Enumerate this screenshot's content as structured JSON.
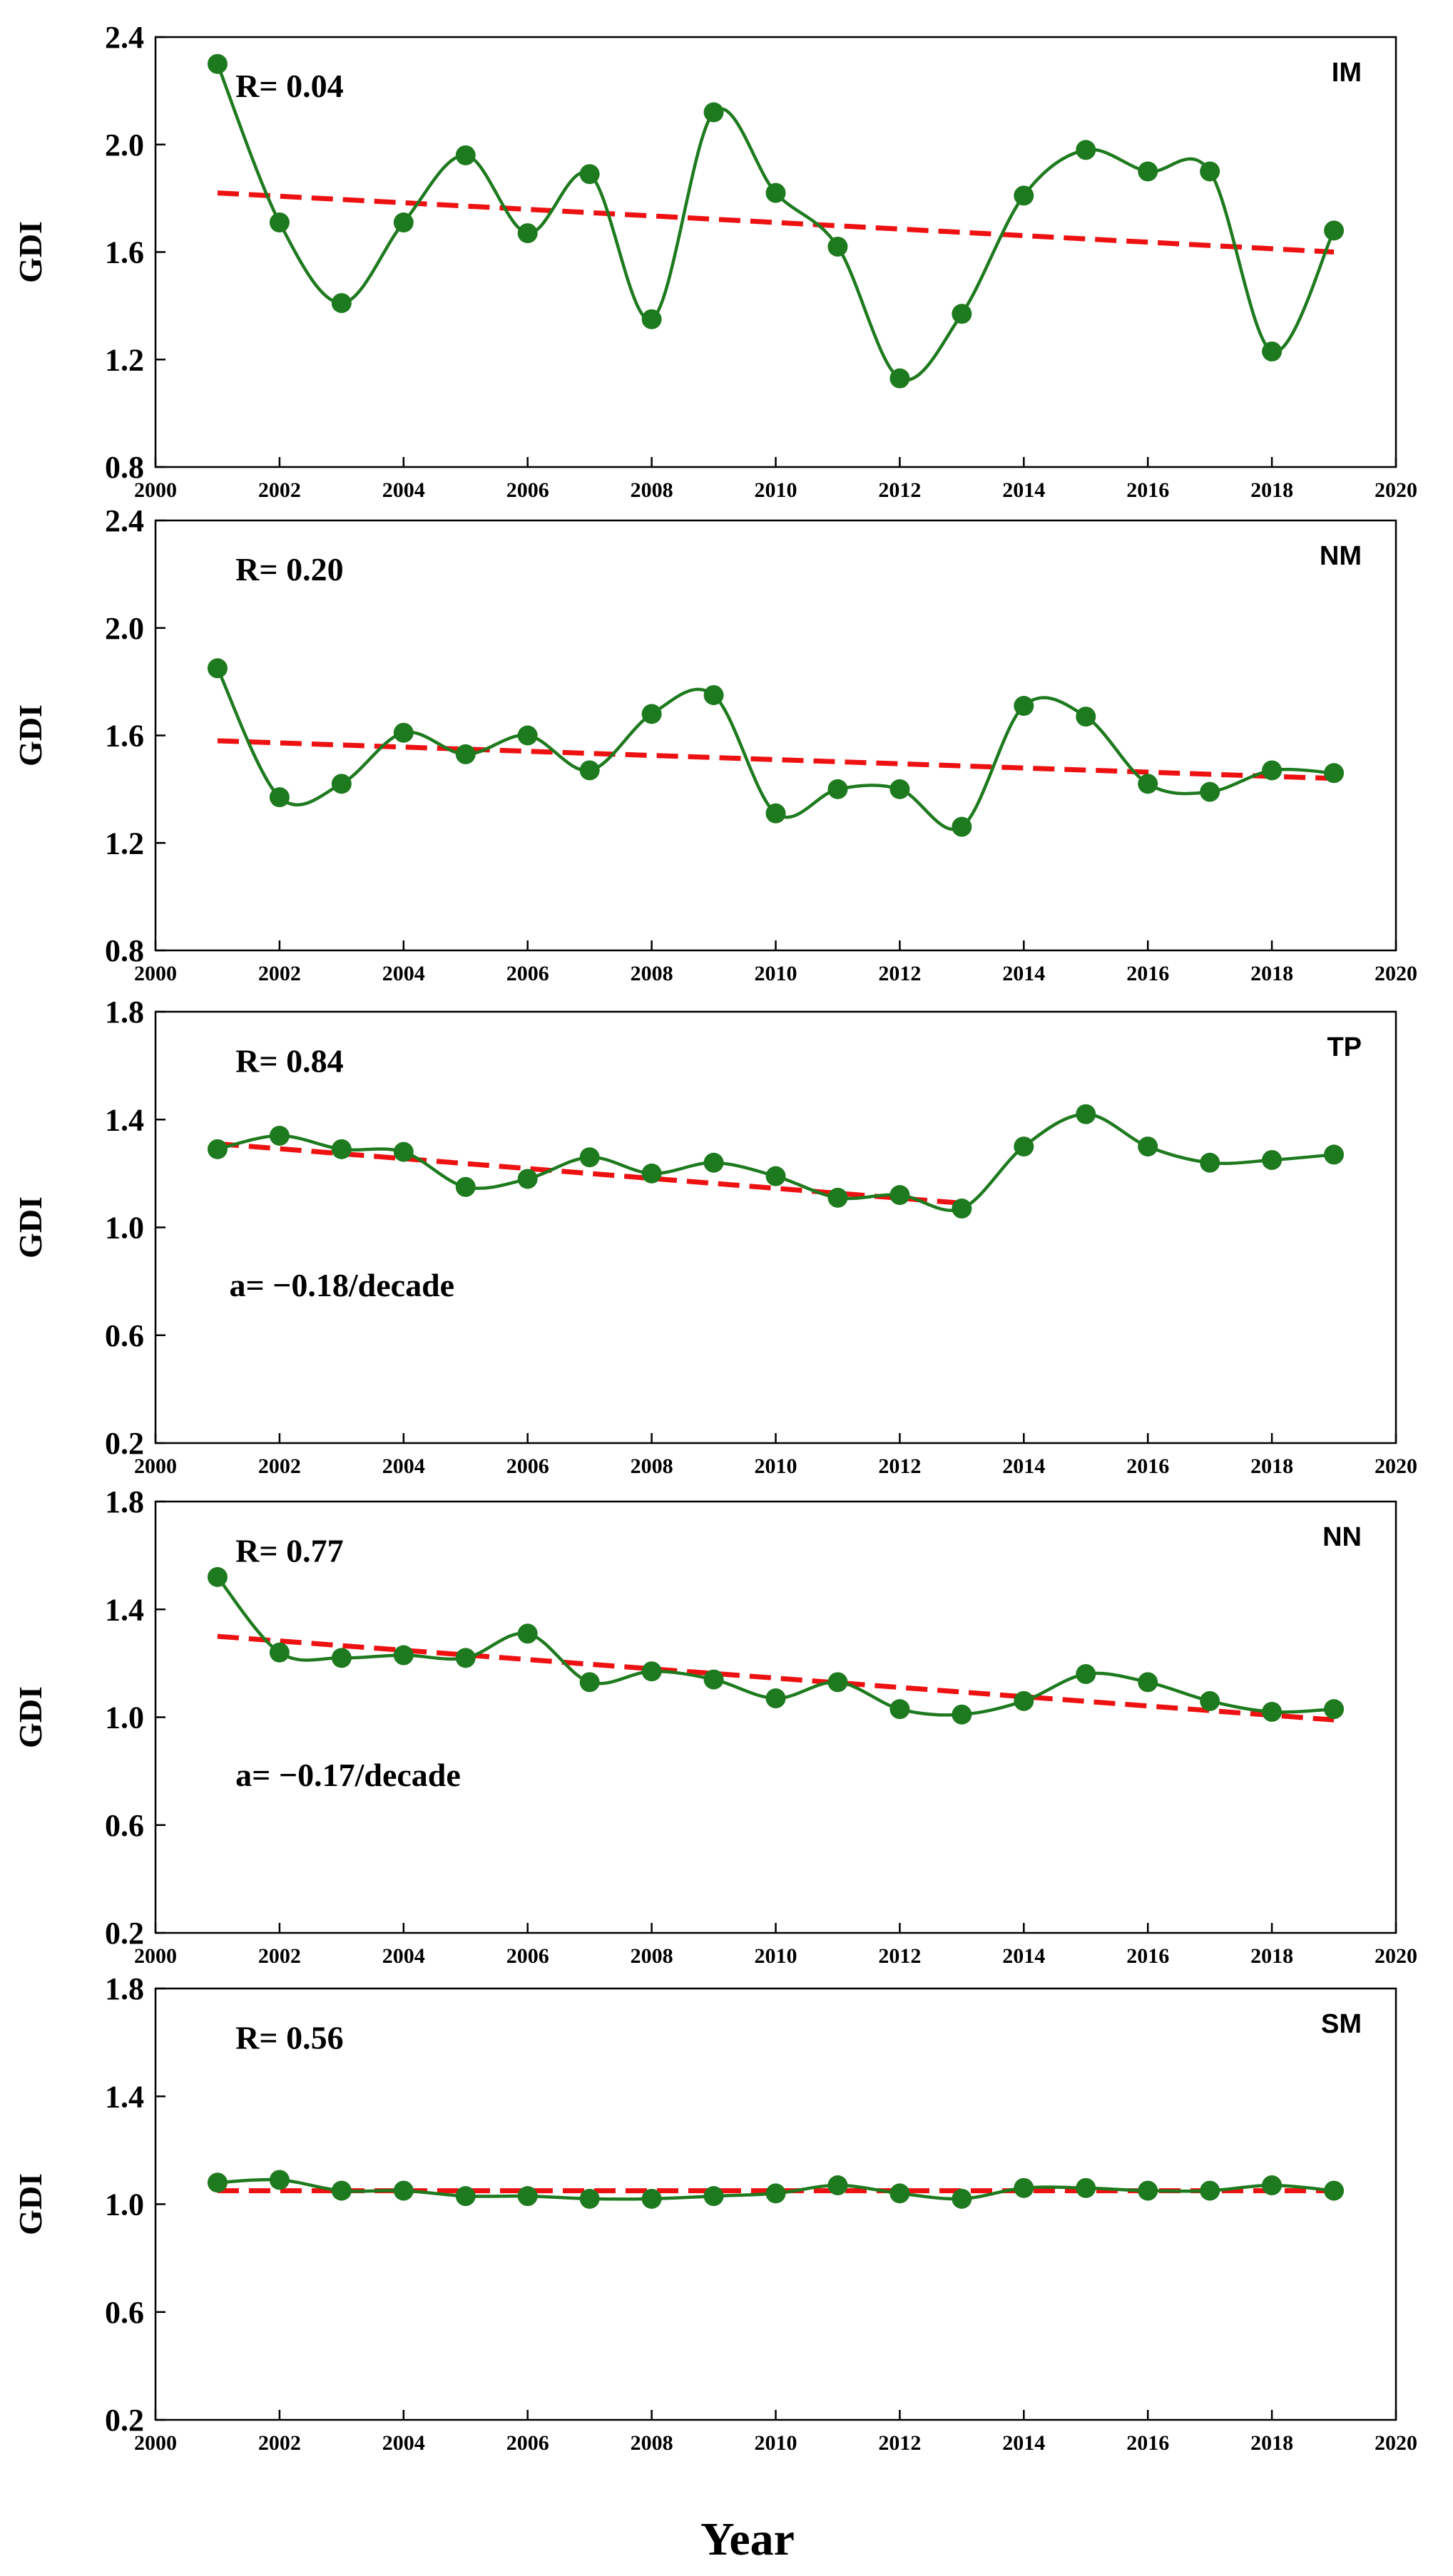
{
  "figure": {
    "xlabel": "Year"
  },
  "colors": {
    "series": "#1e7a1e",
    "trend": "#ee1111",
    "axis": "#000000"
  },
  "chart_data": [
    {
      "type": "line",
      "panel_label": "IM",
      "r_text": "R= 0.04",
      "slope_text": "",
      "xlabel": "",
      "ylabel": "GDI",
      "xlim": [
        2000,
        2020
      ],
      "ylim": [
        0.8,
        2.4
      ],
      "xticks": [
        "2000",
        "2002",
        "2004",
        "2006",
        "2008",
        "2010",
        "2012",
        "2014",
        "2016",
        "2018",
        "2020"
      ],
      "yticks": [
        "0.8",
        "1.2",
        "1.6",
        "2.0",
        "2.4"
      ],
      "x": [
        2001,
        2002,
        2003,
        2004,
        2005,
        2006,
        2007,
        2008,
        2009,
        2010,
        2011,
        2012,
        2013,
        2014,
        2015,
        2016,
        2017,
        2018,
        2019
      ],
      "series": [
        {
          "name": "GDI",
          "values": [
            2.3,
            1.71,
            1.41,
            1.71,
            1.96,
            1.67,
            1.89,
            1.35,
            2.12,
            1.82,
            1.62,
            1.13,
            1.37,
            1.81,
            1.98,
            1.9,
            1.9,
            1.23,
            1.68
          ]
        }
      ],
      "trend": {
        "x": [
          2001,
          2019
        ],
        "y": [
          1.82,
          1.6
        ]
      }
    },
    {
      "type": "line",
      "panel_label": "NM",
      "r_text": "R= 0.20",
      "slope_text": "",
      "xlabel": "",
      "ylabel": "GDI",
      "xlim": [
        2000,
        2020
      ],
      "ylim": [
        0.8,
        2.4
      ],
      "xticks": [
        "2000",
        "2002",
        "2004",
        "2006",
        "2008",
        "2010",
        "2012",
        "2014",
        "2016",
        "2018",
        "2020"
      ],
      "yticks": [
        "0.8",
        "1.2",
        "1.6",
        "2.0",
        "2.4"
      ],
      "x": [
        2001,
        2002,
        2003,
        2004,
        2005,
        2006,
        2007,
        2008,
        2009,
        2010,
        2011,
        2012,
        2013,
        2014,
        2015,
        2016,
        2017,
        2018,
        2019
      ],
      "series": [
        {
          "name": "GDI",
          "values": [
            1.85,
            1.37,
            1.42,
            1.61,
            1.53,
            1.6,
            1.47,
            1.68,
            1.75,
            1.31,
            1.4,
            1.4,
            1.26,
            1.71,
            1.67,
            1.42,
            1.39,
            1.47,
            1.46
          ]
        }
      ],
      "trend": {
        "x": [
          2001,
          2019
        ],
        "y": [
          1.58,
          1.44
        ]
      }
    },
    {
      "type": "line",
      "panel_label": "TP",
      "r_text": "R= 0.84",
      "slope_text": "a= −0.18/decade",
      "xlabel": "",
      "ylabel": "GDI",
      "xlim": [
        2000,
        2020
      ],
      "ylim": [
        0.2,
        1.8
      ],
      "xticks": [
        "2000",
        "2002",
        "2004",
        "2006",
        "2008",
        "2010",
        "2012",
        "2014",
        "2016",
        "2018",
        "2020"
      ],
      "yticks": [
        "0.2",
        "0.6",
        "1.0",
        "1.4",
        "1.8"
      ],
      "x": [
        2001,
        2002,
        2003,
        2004,
        2005,
        2006,
        2007,
        2008,
        2009,
        2010,
        2011,
        2012,
        2013,
        2014,
        2015,
        2016,
        2017,
        2018,
        2019
      ],
      "series": [
        {
          "name": "GDI",
          "values": [
            1.29,
            1.34,
            1.29,
            1.28,
            1.15,
            1.18,
            1.26,
            1.2,
            1.24,
            1.19,
            1.11,
            1.12,
            1.07,
            1.3,
            1.42,
            1.3,
            1.24,
            1.25,
            1.27
          ]
        }
      ],
      "trend": {
        "x": [
          2001,
          2013
        ],
        "y": [
          1.31,
          1.09
        ]
      }
    },
    {
      "type": "line",
      "panel_label": "NN",
      "r_text": "R= 0.77",
      "slope_text": "a= −0.17/decade",
      "xlabel": "",
      "ylabel": "GDI",
      "xlim": [
        2000,
        2020
      ],
      "ylim": [
        0.2,
        1.8
      ],
      "xticks": [
        "2000",
        "2002",
        "2004",
        "2006",
        "2008",
        "2010",
        "2012",
        "2014",
        "2016",
        "2018",
        "2020"
      ],
      "yticks": [
        "0.2",
        "0.6",
        "1.0",
        "1.4",
        "1.8"
      ],
      "x": [
        2001,
        2002,
        2003,
        2004,
        2005,
        2006,
        2007,
        2008,
        2009,
        2010,
        2011,
        2012,
        2013,
        2014,
        2015,
        2016,
        2017,
        2018,
        2019
      ],
      "series": [
        {
          "name": "GDI",
          "values": [
            1.52,
            1.24,
            1.22,
            1.23,
            1.22,
            1.31,
            1.13,
            1.17,
            1.14,
            1.07,
            1.13,
            1.03,
            1.01,
            1.06,
            1.16,
            1.13,
            1.06,
            1.02,
            1.03
          ]
        }
      ],
      "trend": {
        "x": [
          2001,
          2019
        ],
        "y": [
          1.3,
          0.99
        ]
      }
    },
    {
      "type": "line",
      "panel_label": "SM",
      "r_text": "R= 0.56",
      "slope_text": "",
      "xlabel": "",
      "ylabel": "GDI",
      "xlim": [
        2000,
        2020
      ],
      "ylim": [
        0.2,
        1.8
      ],
      "xticks": [
        "2000",
        "2002",
        "2004",
        "2006",
        "2008",
        "2010",
        "2012",
        "2014",
        "2016",
        "2018",
        "2020"
      ],
      "yticks": [
        "0.2",
        "0.6",
        "1.0",
        "1.4",
        "1.8"
      ],
      "x": [
        2001,
        2002,
        2003,
        2004,
        2005,
        2006,
        2007,
        2008,
        2009,
        2010,
        2011,
        2012,
        2013,
        2014,
        2015,
        2016,
        2017,
        2018,
        2019
      ],
      "series": [
        {
          "name": "GDI",
          "values": [
            1.08,
            1.09,
            1.05,
            1.05,
            1.03,
            1.03,
            1.02,
            1.02,
            1.03,
            1.04,
            1.07,
            1.04,
            1.02,
            1.06,
            1.06,
            1.05,
            1.05,
            1.07,
            1.05
          ]
        }
      ],
      "trend": {
        "x": [
          2001,
          2019
        ],
        "y": [
          1.05,
          1.05
        ]
      }
    }
  ]
}
